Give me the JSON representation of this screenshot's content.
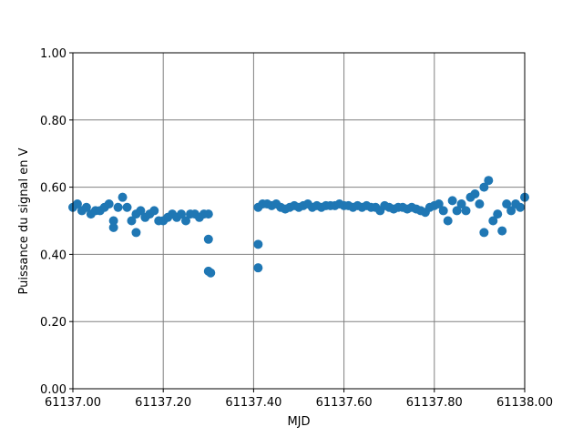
{
  "chart_data": {
    "type": "scatter",
    "xlabel": "MJD",
    "ylabel": "Puissance du signal en V",
    "color": "#1f77b4",
    "grid": true,
    "xlim": [
      61137.0,
      61138.0
    ],
    "xticks": [
      {
        "value": 61137.0,
        "label": "61137.00"
      },
      {
        "value": 61137.2,
        "label": "61137.20"
      },
      {
        "value": 61137.4,
        "label": "61137.40"
      },
      {
        "value": 61137.6,
        "label": "61137.60"
      },
      {
        "value": 61137.8,
        "label": "61137.80"
      },
      {
        "value": 61138.0,
        "label": "61138.00"
      }
    ],
    "ylim": [
      0.0,
      1.0
    ],
    "yticks": [
      {
        "value": 0.0,
        "label": "0.00"
      },
      {
        "value": 0.2,
        "label": "0.20"
      },
      {
        "value": 0.4,
        "label": "0.40"
      },
      {
        "value": 0.6,
        "label": "0.60"
      },
      {
        "value": 0.8,
        "label": "0.80"
      },
      {
        "value": 1.0,
        "label": "1.00"
      }
    ],
    "x": [
      61137.0,
      61137.01,
      61137.02,
      61137.03,
      61137.04,
      61137.05,
      61137.06,
      61137.07,
      61137.08,
      61137.09,
      61137.1,
      61137.11,
      61137.12,
      61137.13,
      61137.14,
      61137.15,
      61137.16,
      61137.17,
      61137.18,
      61137.19,
      61137.2,
      61137.21,
      61137.22,
      61137.23,
      61137.24,
      61137.25,
      61137.26,
      61137.27,
      61137.28,
      61137.29,
      61137.3,
      61137.09,
      61137.14,
      61137.3,
      61137.3,
      61137.305,
      61137.41,
      61137.41,
      61137.41,
      61137.42,
      61137.43,
      61137.44,
      61137.45,
      61137.46,
      61137.47,
      61137.48,
      61137.49,
      61137.5,
      61137.51,
      61137.52,
      61137.53,
      61137.54,
      61137.55,
      61137.56,
      61137.57,
      61137.58,
      61137.59,
      61137.6,
      61137.61,
      61137.62,
      61137.63,
      61137.64,
      61137.65,
      61137.66,
      61137.67,
      61137.68,
      61137.69,
      61137.7,
      61137.71,
      61137.72,
      61137.73,
      61137.74,
      61137.75,
      61137.76,
      61137.77,
      61137.78,
      61137.79,
      61137.8,
      61137.81,
      61137.82,
      61137.83,
      61137.84,
      61137.85,
      61137.86,
      61137.87,
      61137.88,
      61137.89,
      61137.9,
      61137.91,
      61137.92,
      61137.93,
      61137.94,
      61137.95,
      61137.96,
      61137.97,
      61137.98,
      61137.99,
      61138.0,
      61137.91
    ],
    "values": [
      0.54,
      0.55,
      0.53,
      0.54,
      0.52,
      0.53,
      0.53,
      0.54,
      0.55,
      0.5,
      0.54,
      0.57,
      0.54,
      0.5,
      0.52,
      0.53,
      0.51,
      0.52,
      0.53,
      0.5,
      0.5,
      0.51,
      0.52,
      0.51,
      0.52,
      0.5,
      0.52,
      0.52,
      0.51,
      0.52,
      0.52,
      0.48,
      0.465,
      0.445,
      0.35,
      0.345,
      0.43,
      0.36,
      0.54,
      0.55,
      0.55,
      0.545,
      0.55,
      0.54,
      0.535,
      0.54,
      0.545,
      0.54,
      0.545,
      0.55,
      0.54,
      0.545,
      0.54,
      0.545,
      0.545,
      0.545,
      0.55,
      0.545,
      0.545,
      0.54,
      0.545,
      0.54,
      0.545,
      0.54,
      0.54,
      0.53,
      0.545,
      0.54,
      0.535,
      0.54,
      0.54,
      0.535,
      0.54,
      0.535,
      0.53,
      0.525,
      0.54,
      0.545,
      0.55,
      0.53,
      0.5,
      0.56,
      0.53,
      0.55,
      0.53,
      0.57,
      0.58,
      0.55,
      0.6,
      0.62,
      0.5,
      0.52,
      0.47,
      0.55,
      0.53,
      0.55,
      0.54,
      0.57,
      0.465
    ]
  }
}
